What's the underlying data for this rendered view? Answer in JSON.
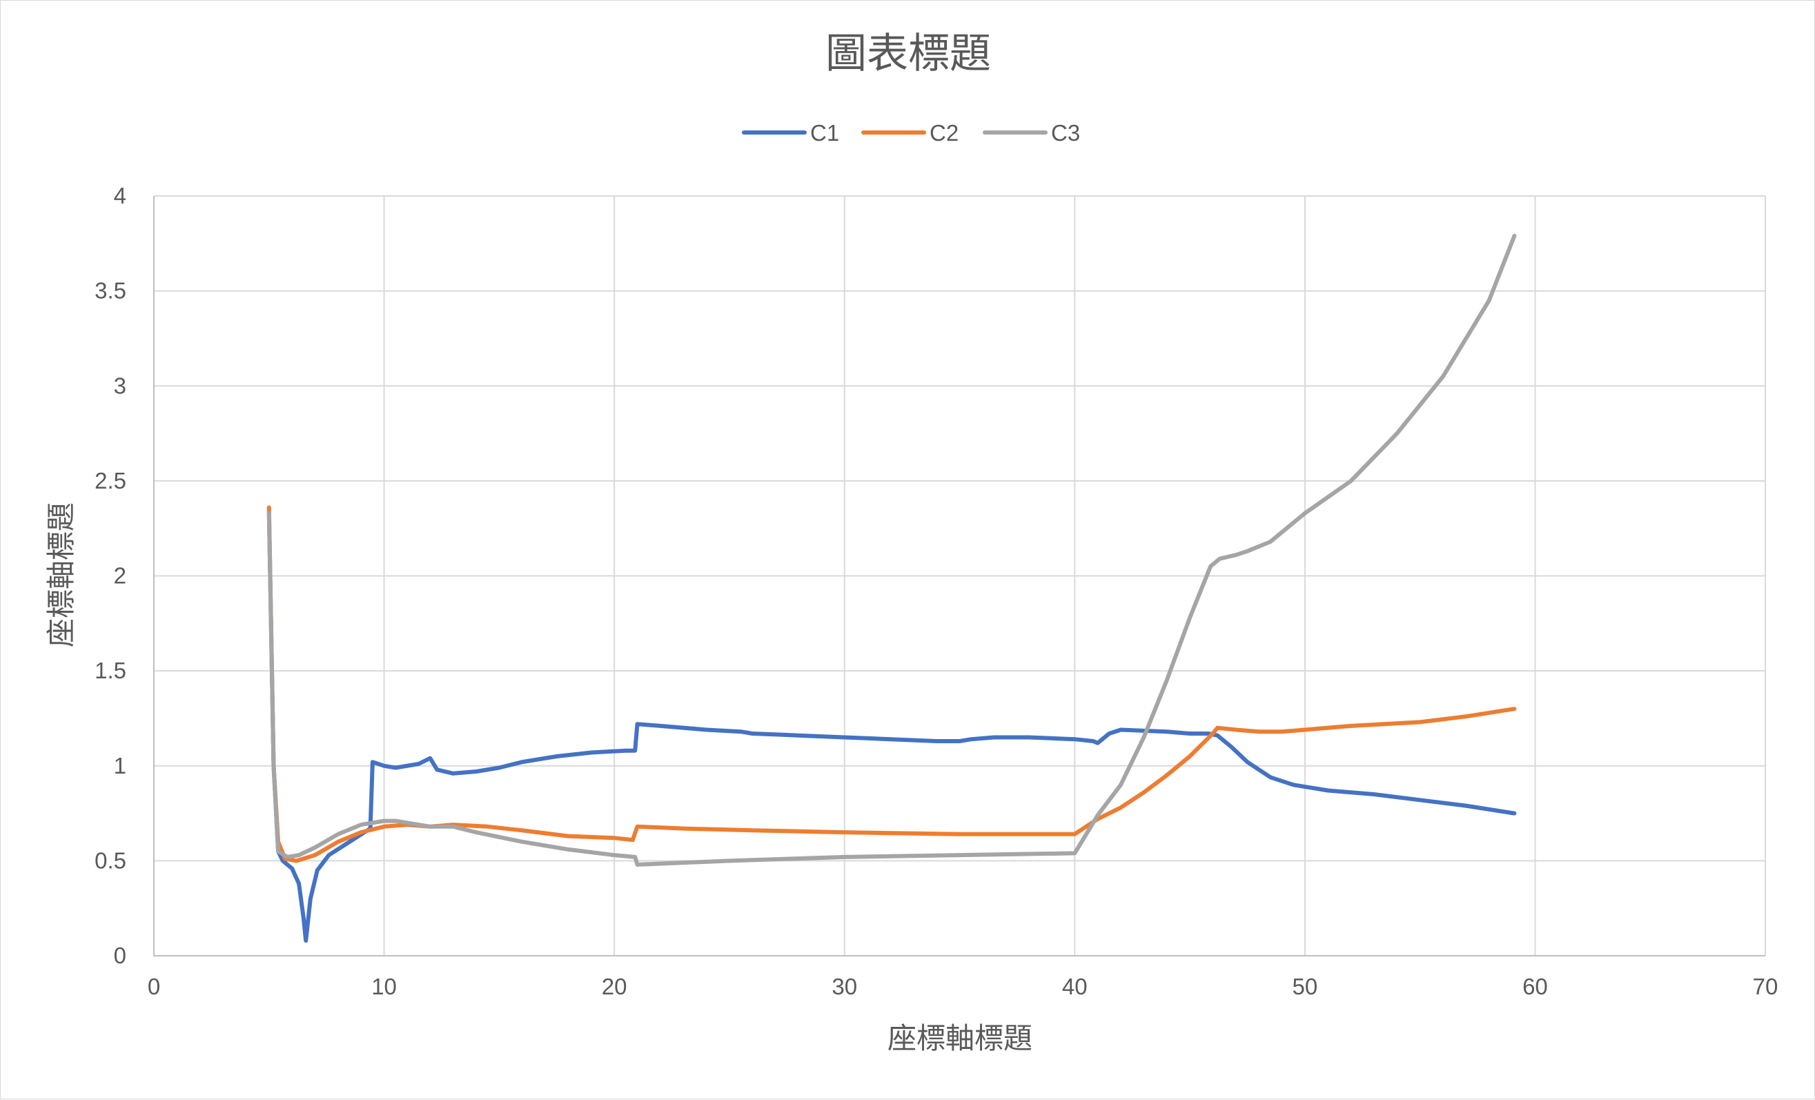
{
  "chart_data": {
    "type": "line",
    "title": "圖表標題",
    "xlabel": "座標軸標題",
    "ylabel": "座標軸標題",
    "xlim": [
      0,
      70
    ],
    "ylim": [
      0,
      4
    ],
    "xticks": [
      "0",
      "10",
      "20",
      "30",
      "40",
      "50",
      "60",
      "70"
    ],
    "yticks": [
      "0",
      "0.5",
      "1",
      "1.5",
      "2",
      "2.5",
      "3",
      "3.5",
      "4"
    ],
    "grid": true,
    "legend_position": "top",
    "series": [
      {
        "name": "C1",
        "color": "#4472c4",
        "points": [
          [
            5.0,
            2.33
          ],
          [
            5.2,
            1.0
          ],
          [
            5.4,
            0.55
          ],
          [
            5.6,
            0.5
          ],
          [
            6.0,
            0.46
          ],
          [
            6.3,
            0.38
          ],
          [
            6.5,
            0.2
          ],
          [
            6.6,
            0.08
          ],
          [
            6.8,
            0.3
          ],
          [
            7.1,
            0.45
          ],
          [
            7.6,
            0.53
          ],
          [
            8.5,
            0.6
          ],
          [
            9.4,
            0.67
          ],
          [
            9.5,
            1.02
          ],
          [
            10.0,
            1.0
          ],
          [
            10.5,
            0.99
          ],
          [
            11.5,
            1.01
          ],
          [
            12.0,
            1.04
          ],
          [
            12.3,
            0.98
          ],
          [
            13.0,
            0.96
          ],
          [
            14.0,
            0.97
          ],
          [
            15.0,
            0.99
          ],
          [
            16.0,
            1.02
          ],
          [
            17.5,
            1.05
          ],
          [
            19.0,
            1.07
          ],
          [
            20.5,
            1.08
          ],
          [
            20.9,
            1.08
          ],
          [
            21.0,
            1.22
          ],
          [
            22.0,
            1.21
          ],
          [
            24.0,
            1.19
          ],
          [
            25.5,
            1.18
          ],
          [
            26.0,
            1.17
          ],
          [
            28.0,
            1.16
          ],
          [
            30.0,
            1.15
          ],
          [
            32.0,
            1.14
          ],
          [
            34.0,
            1.13
          ],
          [
            35.0,
            1.13
          ],
          [
            35.5,
            1.14
          ],
          [
            36.5,
            1.15
          ],
          [
            38.0,
            1.15
          ],
          [
            40.0,
            1.14
          ],
          [
            40.8,
            1.13
          ],
          [
            41.0,
            1.12
          ],
          [
            41.5,
            1.17
          ],
          [
            42.0,
            1.19
          ],
          [
            44.0,
            1.18
          ],
          [
            45.0,
            1.17
          ],
          [
            45.8,
            1.17
          ],
          [
            46.2,
            1.16
          ],
          [
            46.8,
            1.1
          ],
          [
            47.5,
            1.02
          ],
          [
            48.5,
            0.94
          ],
          [
            49.5,
            0.9
          ],
          [
            51.0,
            0.87
          ],
          [
            53.0,
            0.85
          ],
          [
            55.0,
            0.82
          ],
          [
            57.0,
            0.79
          ],
          [
            59.1,
            0.75
          ]
        ]
      },
      {
        "name": "C2",
        "color": "#ed7d31",
        "points": [
          [
            5.0,
            2.36
          ],
          [
            5.2,
            1.0
          ],
          [
            5.4,
            0.6
          ],
          [
            5.7,
            0.51
          ],
          [
            6.2,
            0.5
          ],
          [
            7.0,
            0.53
          ],
          [
            8.0,
            0.6
          ],
          [
            9.0,
            0.65
          ],
          [
            10.0,
            0.68
          ],
          [
            11.0,
            0.69
          ],
          [
            12.0,
            0.68
          ],
          [
            13.0,
            0.69
          ],
          [
            14.5,
            0.68
          ],
          [
            16.0,
            0.66
          ],
          [
            18.0,
            0.63
          ],
          [
            20.0,
            0.62
          ],
          [
            20.8,
            0.61
          ],
          [
            21.0,
            0.68
          ],
          [
            23.0,
            0.67
          ],
          [
            26.0,
            0.66
          ],
          [
            30.0,
            0.65
          ],
          [
            35.0,
            0.64
          ],
          [
            40.0,
            0.64
          ],
          [
            41.0,
            0.72
          ],
          [
            42.0,
            0.78
          ],
          [
            43.0,
            0.86
          ],
          [
            44.0,
            0.95
          ],
          [
            45.0,
            1.05
          ],
          [
            46.0,
            1.17
          ],
          [
            46.2,
            1.2
          ],
          [
            47.0,
            1.19
          ],
          [
            48.0,
            1.18
          ],
          [
            49.0,
            1.18
          ],
          [
            50.0,
            1.19
          ],
          [
            52.0,
            1.21
          ],
          [
            55.0,
            1.23
          ],
          [
            57.0,
            1.26
          ],
          [
            59.1,
            1.3
          ]
        ]
      },
      {
        "name": "C3",
        "color": "#a5a5a5",
        "points": [
          [
            5.0,
            2.33
          ],
          [
            5.2,
            1.0
          ],
          [
            5.4,
            0.55
          ],
          [
            5.8,
            0.52
          ],
          [
            6.3,
            0.53
          ],
          [
            7.0,
            0.57
          ],
          [
            8.0,
            0.64
          ],
          [
            9.0,
            0.69
          ],
          [
            10.0,
            0.71
          ],
          [
            10.5,
            0.71
          ],
          [
            11.5,
            0.69
          ],
          [
            12.0,
            0.68
          ],
          [
            13.0,
            0.68
          ],
          [
            14.0,
            0.65
          ],
          [
            16.0,
            0.6
          ],
          [
            18.0,
            0.56
          ],
          [
            20.0,
            0.53
          ],
          [
            20.9,
            0.52
          ],
          [
            21.0,
            0.48
          ],
          [
            25.0,
            0.5
          ],
          [
            30.0,
            0.52
          ],
          [
            35.0,
            0.53
          ],
          [
            40.0,
            0.54
          ],
          [
            41.0,
            0.74
          ],
          [
            42.0,
            0.9
          ],
          [
            43.0,
            1.15
          ],
          [
            44.0,
            1.45
          ],
          [
            45.0,
            1.78
          ],
          [
            45.9,
            2.05
          ],
          [
            46.3,
            2.09
          ],
          [
            47.0,
            2.11
          ],
          [
            47.5,
            2.13
          ],
          [
            48.5,
            2.18
          ],
          [
            50.0,
            2.33
          ],
          [
            52.0,
            2.5
          ],
          [
            54.0,
            2.75
          ],
          [
            56.0,
            3.05
          ],
          [
            58.0,
            3.45
          ],
          [
            59.1,
            3.79
          ]
        ]
      }
    ]
  }
}
